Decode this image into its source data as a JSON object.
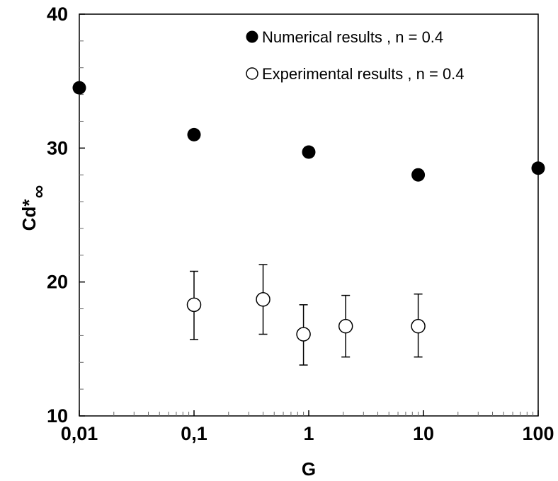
{
  "chart_data": {
    "type": "scatter",
    "xscale": "log",
    "xlim": [
      0.01,
      100
    ],
    "ylim": [
      10,
      40
    ],
    "xticks": [
      "0,01",
      "0,1",
      "1",
      "10",
      "100"
    ],
    "yticks": [
      "10",
      "20",
      "30",
      "40"
    ],
    "xlabel": "G",
    "ylabel": "Cd*",
    "ylabel_sub": "∞",
    "grid": false,
    "legend_position": "top-right",
    "series": [
      {
        "name": "Numerical results , n = 0.4",
        "marker": "filled-circle",
        "color": "#000000",
        "x": [
          0.01,
          0.1,
          1,
          9,
          100
        ],
        "y": [
          34.5,
          31.0,
          29.7,
          28.0,
          28.5
        ]
      },
      {
        "name": "Experimental results , n = 0.4",
        "marker": "open-circle",
        "color": "#000000",
        "x": [
          0.1,
          0.4,
          0.9,
          2.1,
          9
        ],
        "y": [
          18.3,
          18.7,
          16.1,
          16.7,
          16.7
        ],
        "y_err_low": [
          15.7,
          16.1,
          13.8,
          14.4,
          14.4
        ],
        "y_err_high": [
          20.8,
          21.3,
          18.3,
          19.0,
          19.1
        ]
      }
    ]
  }
}
